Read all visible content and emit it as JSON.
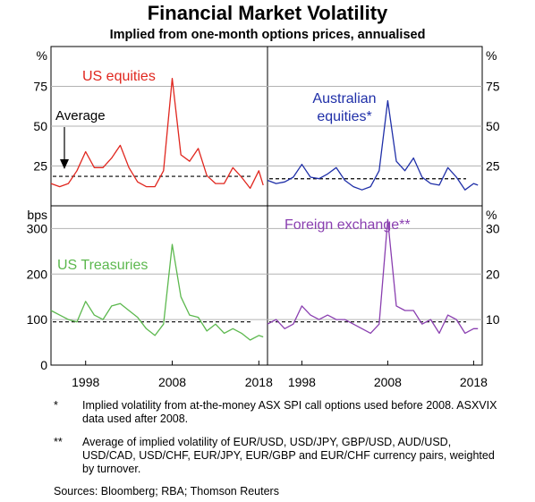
{
  "header": {
    "title": "Financial Market Volatility",
    "subtitle": "Implied from one-month options prices, annualised"
  },
  "chart_data": [
    {
      "type": "line",
      "panel": "top-left",
      "title": "US equities",
      "ylabel": "%",
      "ylim": [
        0,
        100
      ],
      "yticks": [
        25,
        50,
        75
      ],
      "average": 18.5,
      "average_label": "Average",
      "color": "#e0261e",
      "x": [
        1994,
        1995,
        1996,
        1997,
        1998,
        1999,
        2000,
        2001,
        2002,
        2003,
        2004,
        2005,
        2006,
        2007,
        2008,
        2009,
        2010,
        2011,
        2012,
        2013,
        2014,
        2015,
        2016,
        2017,
        2018,
        2018.5
      ],
      "values": [
        14,
        12,
        14,
        22,
        34,
        24,
        24,
        30,
        38,
        24,
        15,
        12,
        12,
        22,
        80,
        32,
        28,
        36,
        19,
        14,
        14,
        24,
        18,
        11,
        22,
        13
      ]
    },
    {
      "type": "line",
      "panel": "top-right",
      "title": "Australian equities*",
      "ylabel": "%",
      "ylim": [
        0,
        100
      ],
      "yticks": [
        25,
        50,
        75
      ],
      "average": 17,
      "color": "#1f2fa8",
      "x": [
        1994,
        1995,
        1996,
        1997,
        1998,
        1999,
        2000,
        2001,
        2002,
        2003,
        2004,
        2005,
        2006,
        2007,
        2008,
        2009,
        2010,
        2011,
        2012,
        2013,
        2014,
        2015,
        2016,
        2017,
        2018,
        2018.5
      ],
      "values": [
        16,
        14,
        15,
        18,
        26,
        18,
        17,
        20,
        24,
        16,
        12,
        10,
        12,
        22,
        66,
        28,
        22,
        30,
        18,
        14,
        13,
        24,
        18,
        10,
        14,
        13
      ]
    },
    {
      "type": "line",
      "panel": "bottom-left",
      "title": "US Treasuries",
      "ylabel": "bps",
      "ylim": [
        0,
        350
      ],
      "yticks": [
        0,
        100,
        200,
        300
      ],
      "average": 95,
      "color": "#5cb84e",
      "x": [
        1994,
        1995,
        1996,
        1997,
        1998,
        1999,
        2000,
        2001,
        2002,
        2003,
        2004,
        2005,
        2006,
        2007,
        2008,
        2009,
        2010,
        2011,
        2012,
        2013,
        2014,
        2015,
        2016,
        2017,
        2018,
        2018.5
      ],
      "values": [
        120,
        110,
        100,
        95,
        140,
        110,
        100,
        130,
        135,
        120,
        105,
        80,
        65,
        90,
        265,
        150,
        110,
        105,
        75,
        90,
        70,
        80,
        70,
        55,
        65,
        62
      ]
    },
    {
      "type": "line",
      "panel": "bottom-right",
      "title": "Foreign exchange**",
      "ylabel": "%",
      "ylim": [
        0,
        35
      ],
      "yticks": [
        10,
        20,
        30
      ],
      "average": 9.5,
      "color": "#8a3fb0",
      "x": [
        1994,
        1995,
        1996,
        1997,
        1998,
        1999,
        2000,
        2001,
        2002,
        2003,
        2004,
        2005,
        2006,
        2007,
        2008,
        2009,
        2010,
        2011,
        2012,
        2013,
        2014,
        2015,
        2016,
        2017,
        2018,
        2018.5
      ],
      "values": [
        9,
        10,
        8,
        9,
        13,
        11,
        10,
        11,
        10,
        10,
        9,
        8,
        7,
        9,
        32,
        13,
        12,
        12,
        9,
        10,
        7,
        11,
        10,
        7,
        8,
        8
      ]
    }
  ],
  "axes": {
    "x_ticks": [
      "1998",
      "2008",
      "2018"
    ],
    "x_range": [
      1994,
      2019
    ]
  },
  "notes": [
    {
      "mark": "*",
      "text": "Implied volatility from at-the-money ASX SPI call options used before 2008. ASXVIX data used after 2008."
    },
    {
      "mark": "**",
      "text": "Average of implied volatility of EUR/USD, USD/JPY, GBP/USD, AUD/USD, USD/CAD, USD/CHF, EUR/JPY, EUR/GBP and EUR/CHF currency pairs, weighted by turnover."
    }
  ],
  "sources": "Sources:   Bloomberg; RBA; Thomson Reuters"
}
